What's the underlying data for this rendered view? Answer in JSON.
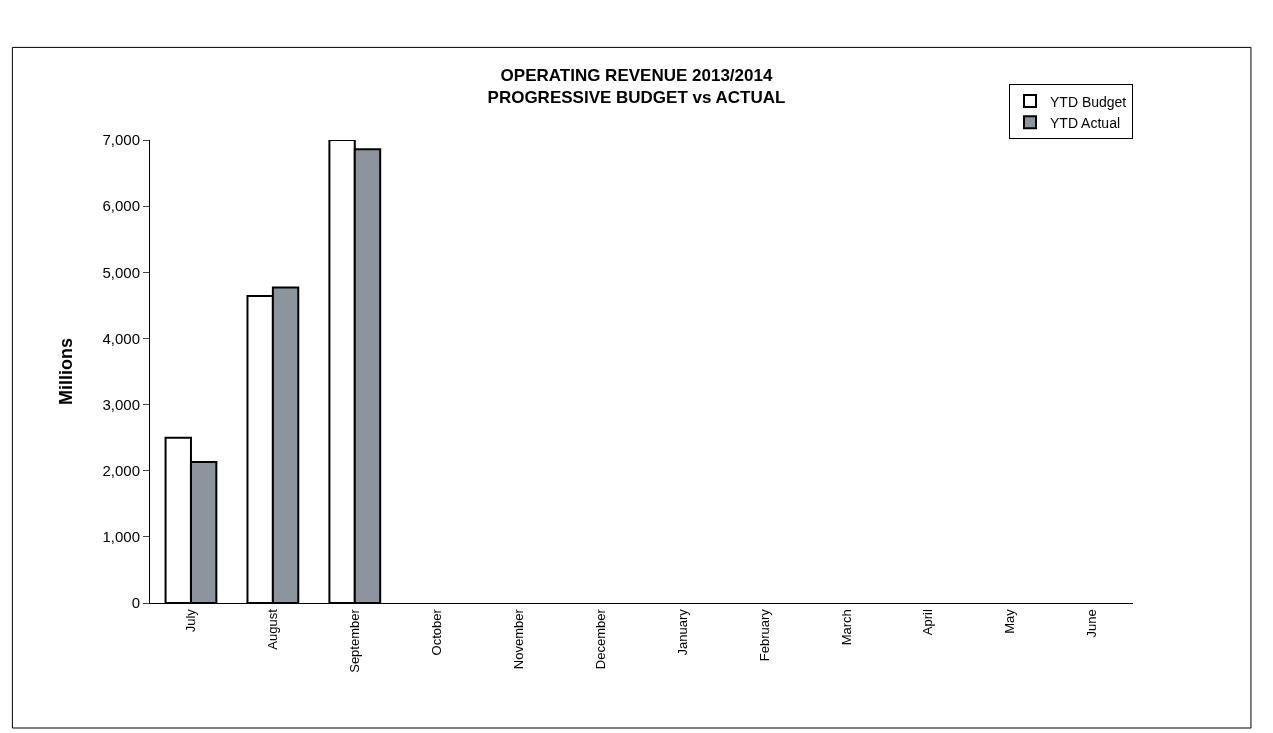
{
  "chart_data": {
    "type": "bar",
    "title": "OPERATING REVENUE 2013/2014\nPROGRESSIVE BUDGET vs ACTUAL",
    "ylabel": "Millions",
    "categories": [
      "July",
      "August",
      "September",
      "October",
      "November",
      "December",
      "January",
      "February",
      "March",
      "April",
      "May",
      "June"
    ],
    "series": [
      {
        "name": "YTD Budget",
        "color": "#ffffff",
        "values": [
          2500,
          4640,
          7000,
          null,
          null,
          null,
          null,
          null,
          null,
          null,
          null,
          null
        ]
      },
      {
        "name": "YTD Actual",
        "color": "#8c949e",
        "values": [
          2130,
          4770,
          6860,
          null,
          null,
          null,
          null,
          null,
          null,
          null,
          null,
          null
        ]
      }
    ],
    "ylim": [
      0,
      7000
    ],
    "yticks": [
      {
        "value": 0,
        "label": "0"
      },
      {
        "value": 1000,
        "label": "1,000"
      },
      {
        "value": 2000,
        "label": "2,000"
      },
      {
        "value": 3000,
        "label": "3,000"
      },
      {
        "value": 4000,
        "label": "4,000"
      },
      {
        "value": 5000,
        "label": "5,000"
      },
      {
        "value": 6000,
        "label": "6,000"
      },
      {
        "value": 7000,
        "label": "7,000"
      }
    ],
    "legend": "top right"
  }
}
